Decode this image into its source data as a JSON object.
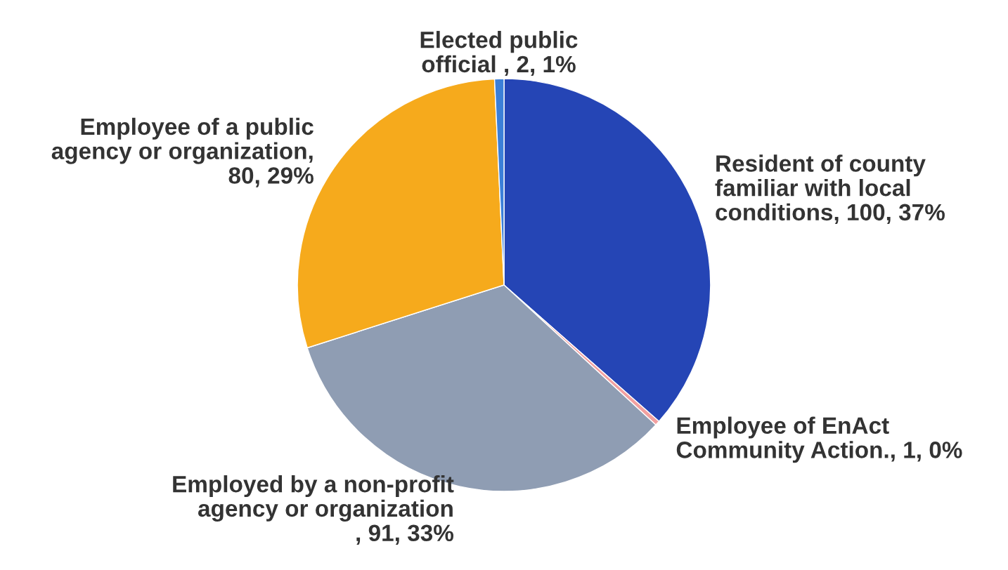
{
  "chart_data": {
    "type": "pie",
    "categories": [
      "Resident of county familiar with local conditions, 100, 37%",
      "Employee of EnAct Community Action., 1, 0%",
      "Employed by a non-profit agency or organization  , 91, 33%",
      "Employee of a public agency or organization, 80, 29%",
      "Elected public official , 2, 1%"
    ],
    "values": [
      100,
      1,
      91,
      80,
      2
    ],
    "colors": [
      "#2545b5",
      "#f2a0a0",
      "#8f9db3",
      "#f6aa1c",
      "#3b7fd8"
    ]
  }
}
